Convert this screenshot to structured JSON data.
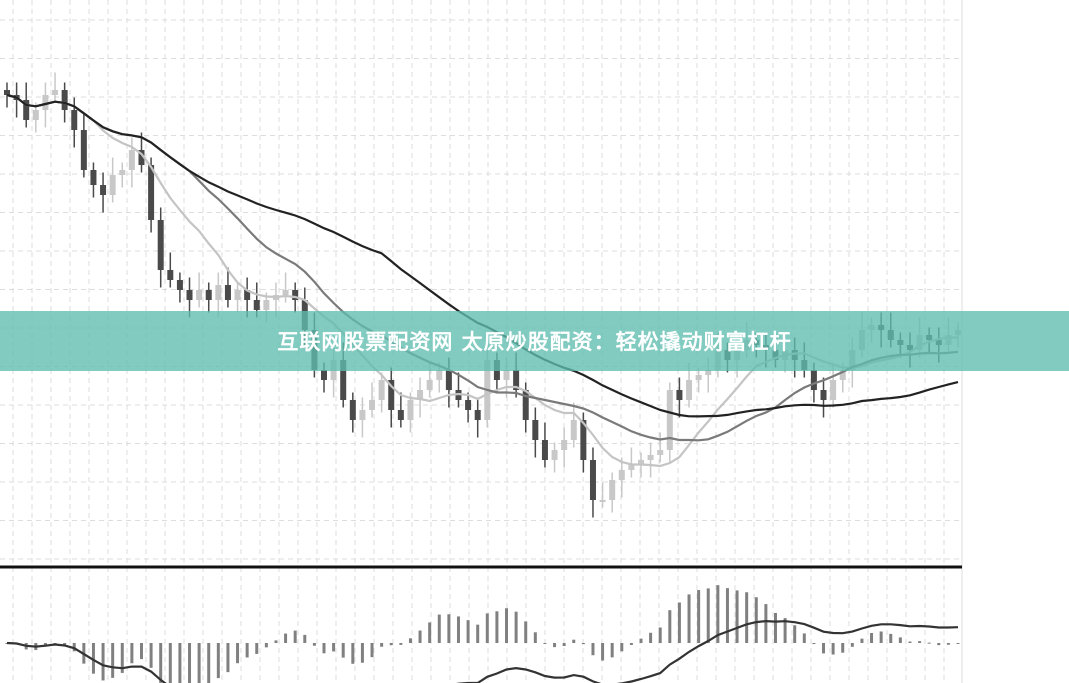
{
  "banner": {
    "text": "互联网股票配资网 太原炒股配资：轻松撬动财富杠杆",
    "color": "#5fbdaf"
  },
  "chart_data": {
    "type": "candlestick",
    "title": "",
    "xlabel": "",
    "ylabel": "",
    "grid": true,
    "ylim": [
      12,
      108
    ],
    "colors": {
      "up": "#c8c8c8",
      "down": "#4a4a4a",
      "ma_short": "#c4c4c4",
      "ma_mid": "#7a7a7a",
      "ma_long": "#222222",
      "macd_hist": "#808080",
      "macd_line": "#333333"
    },
    "close": [
      101,
      100,
      96,
      98,
      101,
      102,
      98,
      94,
      86,
      83,
      81,
      85,
      86,
      90,
      87,
      76,
      66,
      64,
      62,
      60,
      62,
      60,
      63,
      60,
      62,
      60,
      58,
      60,
      61,
      62,
      60,
      54,
      46,
      44,
      48,
      40,
      36,
      38,
      40,
      44,
      38,
      36,
      40,
      42,
      44,
      46,
      42,
      40,
      38,
      36,
      48,
      44,
      46,
      42,
      36,
      32,
      28,
      30,
      32,
      36,
      28,
      20,
      20,
      24,
      26,
      27,
      28,
      29,
      30,
      42,
      40,
      44,
      45,
      46,
      50,
      48,
      50,
      52,
      51,
      50,
      48,
      50,
      48,
      46,
      42,
      40,
      44,
      46,
      50,
      54,
      55,
      54,
      52,
      51,
      50,
      53,
      52,
      51,
      53,
      54
    ],
    "indicators": {
      "moving_averages": [
        10,
        20,
        40
      ],
      "lower_pane": "MACD"
    }
  }
}
